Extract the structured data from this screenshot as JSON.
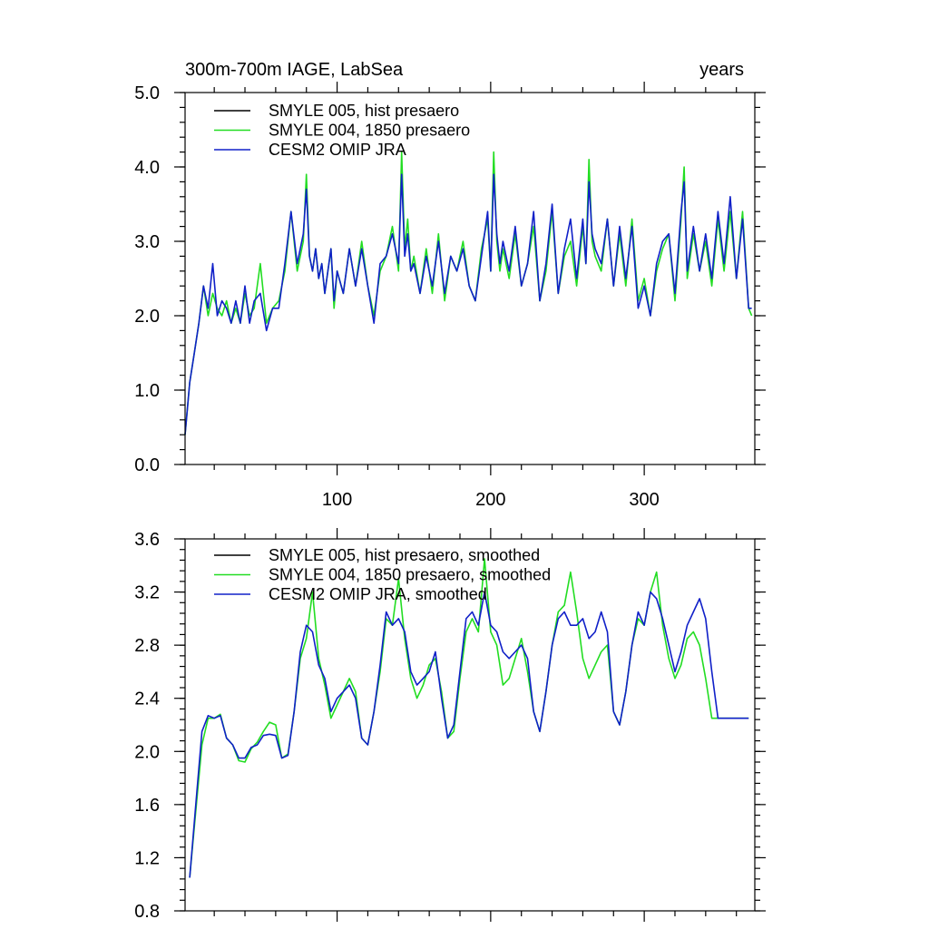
{
  "chart_data": [
    {
      "type": "line",
      "title_left": "300m-700m IAGE, LabSea",
      "title_right": "years",
      "xlim": [
        1,
        372
      ],
      "ylim": [
        0,
        5
      ],
      "x_ticks": [
        100,
        200,
        300
      ],
      "x_tick_labels": [
        "100",
        "200",
        "300"
      ],
      "y_ticks": [
        0,
        1,
        2,
        3,
        4,
        5
      ],
      "y_tick_labels": [
        "0.0",
        "1.0",
        "2.0",
        "3.0",
        "4.0",
        "5.0"
      ],
      "legend": [
        {
          "name": "SMYLE 005, hist presaero",
          "color": "#000000"
        },
        {
          "name": "SMYLE 004, 1850 presaero",
          "color": "#22dd22"
        },
        {
          "name": "CESM2 OMIP JRA",
          "color": "#1020c8"
        }
      ],
      "series": [
        {
          "name": "SMYLE 004, 1850 presaero",
          "color": "#22dd22",
          "x": [
            1,
            4,
            7,
            10,
            13,
            16,
            19,
            22,
            25,
            28,
            31,
            34,
            37,
            40,
            43,
            46,
            50,
            54,
            58,
            62,
            66,
            70,
            74,
            78,
            80,
            82,
            84,
            86,
            88,
            90,
            92,
            94,
            96,
            98,
            100,
            104,
            108,
            112,
            116,
            120,
            124,
            128,
            132,
            136,
            140,
            142,
            144,
            146,
            148,
            150,
            154,
            158,
            162,
            166,
            170,
            174,
            178,
            182,
            186,
            190,
            194,
            198,
            200,
            202,
            204,
            206,
            208,
            212,
            216,
            220,
            224,
            228,
            232,
            236,
            240,
            244,
            248,
            252,
            256,
            260,
            262,
            264,
            266,
            268,
            272,
            276,
            280,
            284,
            288,
            292,
            296,
            300,
            304,
            308,
            312,
            316,
            320,
            324,
            326,
            328,
            332,
            336,
            340,
            344,
            348,
            352,
            356,
            360,
            364,
            368,
            370
          ],
          "y": [
            0.4,
            1.1,
            1.5,
            1.9,
            2.4,
            2.0,
            2.3,
            2.1,
            2.0,
            2.2,
            1.9,
            2.1,
            1.9,
            2.3,
            2.0,
            2.1,
            2.7,
            1.9,
            2.1,
            2.2,
            2.6,
            3.4,
            2.6,
            3.0,
            3.9,
            2.8,
            2.6,
            2.9,
            2.5,
            2.7,
            2.3,
            2.6,
            2.9,
            2.1,
            2.6,
            2.3,
            2.9,
            2.4,
            3.0,
            2.4,
            2.0,
            2.6,
            2.8,
            3.2,
            2.6,
            4.2,
            2.9,
            3.3,
            2.6,
            2.8,
            2.3,
            2.9,
            2.3,
            3.1,
            2.2,
            2.8,
            2.6,
            3.0,
            2.4,
            2.2,
            2.9,
            3.3,
            2.6,
            4.2,
            3.0,
            2.6,
            2.9,
            2.5,
            3.1,
            2.4,
            2.7,
            3.2,
            2.2,
            2.6,
            3.4,
            2.3,
            2.8,
            3.0,
            2.4,
            3.2,
            2.7,
            4.1,
            3.0,
            2.8,
            2.6,
            3.3,
            2.4,
            3.1,
            2.4,
            3.3,
            2.2,
            2.5,
            2.0,
            2.6,
            2.9,
            3.1,
            2.2,
            3.3,
            4.0,
            2.5,
            3.1,
            2.6,
            3.0,
            2.4,
            3.3,
            2.6,
            3.4,
            2.5,
            3.4,
            2.1,
            2.0
          ]
        },
        {
          "name": "CESM2 OMIP JRA",
          "color": "#1020c8",
          "x": [
            1,
            4,
            7,
            10,
            13,
            16,
            19,
            22,
            25,
            28,
            31,
            34,
            37,
            40,
            43,
            46,
            50,
            54,
            58,
            62,
            66,
            70,
            74,
            78,
            80,
            82,
            84,
            86,
            88,
            90,
            92,
            94,
            96,
            98,
            100,
            104,
            108,
            112,
            116,
            120,
            124,
            128,
            132,
            136,
            140,
            142,
            144,
            146,
            148,
            150,
            154,
            158,
            162,
            166,
            170,
            174,
            178,
            182,
            186,
            190,
            194,
            198,
            200,
            202,
            204,
            206,
            208,
            212,
            216,
            220,
            224,
            228,
            232,
            236,
            240,
            244,
            248,
            252,
            256,
            260,
            262,
            264,
            266,
            268,
            272,
            276,
            280,
            284,
            288,
            292,
            296,
            300,
            304,
            308,
            312,
            316,
            320,
            324,
            326,
            328,
            332,
            336,
            340,
            344,
            348,
            352,
            356,
            360,
            364,
            368,
            370
          ],
          "y": [
            0.4,
            1.1,
            1.5,
            1.9,
            2.4,
            2.1,
            2.7,
            2.0,
            2.2,
            2.1,
            1.9,
            2.2,
            1.9,
            2.4,
            1.9,
            2.2,
            2.3,
            1.8,
            2.1,
            2.1,
            2.7,
            3.4,
            2.7,
            3.1,
            3.7,
            2.8,
            2.6,
            2.9,
            2.5,
            2.7,
            2.3,
            2.6,
            2.9,
            2.2,
            2.6,
            2.3,
            2.9,
            2.4,
            2.9,
            2.4,
            1.9,
            2.7,
            2.8,
            3.1,
            2.7,
            3.9,
            2.8,
            3.1,
            2.6,
            2.7,
            2.3,
            2.8,
            2.4,
            3.0,
            2.3,
            2.8,
            2.6,
            2.9,
            2.4,
            2.2,
            2.8,
            3.4,
            2.6,
            3.9,
            3.1,
            2.7,
            3.0,
            2.6,
            3.2,
            2.4,
            2.7,
            3.4,
            2.2,
            2.7,
            3.5,
            2.3,
            2.9,
            3.3,
            2.5,
            3.3,
            2.7,
            3.8,
            3.1,
            2.9,
            2.7,
            3.3,
            2.4,
            3.2,
            2.5,
            3.2,
            2.1,
            2.4,
            2.0,
            2.7,
            3.0,
            3.1,
            2.3,
            3.4,
            3.8,
            2.6,
            3.2,
            2.6,
            3.1,
            2.5,
            3.4,
            2.7,
            3.6,
            2.5,
            3.3,
            2.1,
            2.1
          ]
        }
      ]
    },
    {
      "type": "line",
      "xlim": [
        1,
        372
      ],
      "ylim": [
        0.8,
        3.6
      ],
      "x_ticks": [
        100,
        200,
        300
      ],
      "y_ticks": [
        0.8,
        1.2,
        1.6,
        2.0,
        2.4,
        2.8,
        3.2,
        3.6
      ],
      "y_tick_labels": [
        "0.8",
        "1.2",
        "1.6",
        "2.0",
        "2.4",
        "2.8",
        "3.2",
        "3.6"
      ],
      "legend": [
        {
          "name": "SMYLE 005, hist presaero, smoothed",
          "color": "#000000"
        },
        {
          "name": "SMYLE 004, 1850 presaero, smoothed",
          "color": "#22dd22"
        },
        {
          "name": "CESM2 OMIP JRA, smoothed",
          "color": "#1020c8"
        }
      ],
      "series": [
        {
          "name": "SMYLE 004, 1850 presaero, smoothed",
          "color": "#22dd22",
          "x": [
            4,
            8,
            12,
            16,
            20,
            24,
            28,
            32,
            36,
            40,
            44,
            48,
            52,
            56,
            60,
            64,
            68,
            72,
            76,
            80,
            84,
            88,
            92,
            96,
            100,
            104,
            108,
            112,
            116,
            120,
            124,
            128,
            132,
            136,
            140,
            144,
            148,
            152,
            156,
            160,
            164,
            168,
            172,
            176,
            180,
            184,
            188,
            192,
            196,
            200,
            204,
            208,
            212,
            216,
            220,
            224,
            228,
            232,
            236,
            240,
            244,
            248,
            252,
            256,
            260,
            264,
            268,
            272,
            276,
            280,
            284,
            288,
            292,
            296,
            300,
            304,
            308,
            312,
            316,
            320,
            324,
            328,
            332,
            336,
            340,
            344,
            348,
            352,
            356,
            360,
            364,
            368
          ],
          "y": [
            1.05,
            1.55,
            2.05,
            2.25,
            2.25,
            2.28,
            2.1,
            2.05,
            1.93,
            1.92,
            2.02,
            2.07,
            2.15,
            2.22,
            2.2,
            1.95,
            1.98,
            2.3,
            2.7,
            2.85,
            3.2,
            2.7,
            2.5,
            2.25,
            2.35,
            2.45,
            2.55,
            2.45,
            2.1,
            2.05,
            2.3,
            2.6,
            3.0,
            2.95,
            3.3,
            2.85,
            2.55,
            2.4,
            2.5,
            2.65,
            2.7,
            2.45,
            2.1,
            2.15,
            2.55,
            2.9,
            3.0,
            2.9,
            3.45,
            2.9,
            2.8,
            2.5,
            2.55,
            2.7,
            2.85,
            2.6,
            2.3,
            2.15,
            2.45,
            2.8,
            3.05,
            3.1,
            3.35,
            3.05,
            2.7,
            2.55,
            2.65,
            2.75,
            2.8,
            2.3,
            2.2,
            2.45,
            2.8,
            3.0,
            2.95,
            3.2,
            3.35,
            2.95,
            2.7,
            2.55,
            2.65,
            2.85,
            2.9,
            2.8,
            2.55,
            2.25,
            2.25,
            2.25,
            2.25,
            2.25,
            2.25,
            2.25
          ]
        },
        {
          "name": "CESM2 OMIP JRA, smoothed",
          "color": "#1020c8",
          "x": [
            4,
            8,
            12,
            16,
            20,
            24,
            28,
            32,
            36,
            40,
            44,
            48,
            52,
            56,
            60,
            64,
            68,
            72,
            76,
            80,
            84,
            88,
            92,
            96,
            100,
            104,
            108,
            112,
            116,
            120,
            124,
            128,
            132,
            136,
            140,
            144,
            148,
            152,
            156,
            160,
            164,
            168,
            172,
            176,
            180,
            184,
            188,
            192,
            196,
            200,
            204,
            208,
            212,
            216,
            220,
            224,
            228,
            232,
            236,
            240,
            244,
            248,
            252,
            256,
            260,
            264,
            268,
            272,
            276,
            280,
            284,
            288,
            292,
            296,
            300,
            304,
            308,
            312,
            316,
            320,
            324,
            328,
            332,
            336,
            340,
            344,
            348,
            352,
            356,
            360,
            364,
            368
          ],
          "y": [
            1.05,
            1.6,
            2.15,
            2.27,
            2.25,
            2.27,
            2.1,
            2.05,
            1.95,
            1.95,
            2.03,
            2.05,
            2.12,
            2.13,
            2.12,
            1.95,
            1.97,
            2.3,
            2.75,
            2.95,
            2.9,
            2.65,
            2.55,
            2.3,
            2.4,
            2.45,
            2.5,
            2.4,
            2.1,
            2.05,
            2.3,
            2.65,
            3.05,
            2.95,
            3.0,
            2.9,
            2.6,
            2.5,
            2.55,
            2.6,
            2.75,
            2.4,
            2.1,
            2.2,
            2.6,
            3.0,
            3.05,
            2.95,
            3.2,
            2.95,
            2.9,
            2.75,
            2.7,
            2.75,
            2.8,
            2.7,
            2.3,
            2.15,
            2.45,
            2.8,
            3.0,
            3.05,
            2.95,
            2.95,
            3.0,
            2.85,
            2.9,
            3.05,
            2.9,
            2.3,
            2.2,
            2.45,
            2.8,
            3.05,
            2.95,
            3.2,
            3.15,
            3.0,
            2.8,
            2.6,
            2.75,
            2.95,
            3.05,
            3.15,
            3.0,
            2.6,
            2.25,
            2.25,
            2.25,
            2.25,
            2.25,
            2.25
          ]
        }
      ]
    }
  ]
}
